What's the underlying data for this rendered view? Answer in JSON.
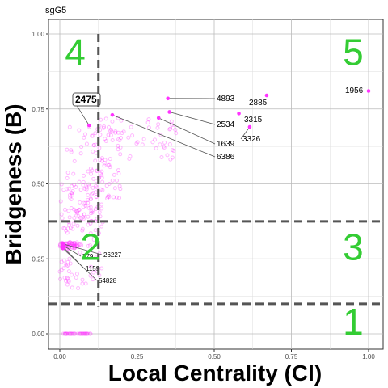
{
  "chart_data": {
    "type": "scatter",
    "panel_title": "sgG5",
    "xlabel": "Local Centrality (Cl)",
    "ylabel": "Bridgeness (B)",
    "xlim": [
      0,
      1
    ],
    "ylim": [
      0,
      1
    ],
    "x_ticks": [
      "0.00",
      "0.25",
      "0.50",
      "0.75",
      "1.00"
    ],
    "y_ticks": [
      "0.00",
      "0.25",
      "0.50",
      "0.75",
      "1.00"
    ],
    "grid": true,
    "point_color": "#ff33ff",
    "region_color": "#33cc33",
    "line_color": "#555555",
    "thresholds": {
      "vertical_x": 0.125,
      "horizontal_y": [
        0.1,
        0.375
      ]
    },
    "regions": [
      {
        "label": "1",
        "x": 0.95,
        "y": 0.04
      },
      {
        "label": "2",
        "x": 0.1,
        "y": 0.29
      },
      {
        "label": "3",
        "x": 0.95,
        "y": 0.29
      },
      {
        "label": "4",
        "x": 0.05,
        "y": 0.94
      },
      {
        "label": "5",
        "x": 0.95,
        "y": 0.94
      }
    ],
    "highlighted_points": [
      {
        "label": "1956",
        "x": 1.0,
        "y": 0.81
      },
      {
        "label": "2885",
        "x": 0.67,
        "y": 0.795
      },
      {
        "label": "4893",
        "x": 0.35,
        "y": 0.785
      },
      {
        "label": "3315",
        "x": 0.58,
        "y": 0.735
      },
      {
        "label": "2534",
        "x": 0.355,
        "y": 0.74
      },
      {
        "label": "3326",
        "x": 0.615,
        "y": 0.69
      },
      {
        "label": "1639",
        "x": 0.32,
        "y": 0.72
      },
      {
        "label": "6386",
        "x": 0.17,
        "y": 0.73
      },
      {
        "label": "2475",
        "x": 0.095,
        "y": 0.695
      },
      {
        "label": "26227",
        "x": 0.01,
        "y": 0.3
      },
      {
        "label": "779",
        "x": 0.01,
        "y": 0.295
      },
      {
        "label": "1159",
        "x": 0.01,
        "y": 0.29
      },
      {
        "label": "54828",
        "x": 0.01,
        "y": 0.285
      }
    ]
  }
}
